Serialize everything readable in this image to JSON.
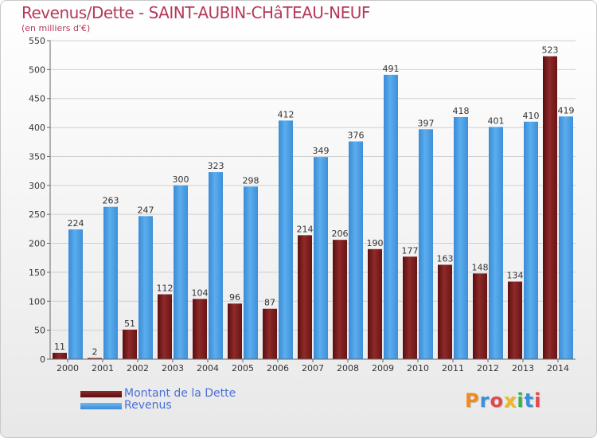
{
  "title": "Revenus/Dette - SAINT-AUBIN-CHâTEAU-NEUF",
  "subtitle": "(en milliers d'€)",
  "logo": "Proxiti",
  "chart_data": {
    "type": "bar",
    "categories": [
      "2000",
      "2001",
      "2002",
      "2003",
      "2004",
      "2005",
      "2006",
      "2007",
      "2008",
      "2009",
      "2010",
      "2011",
      "2012",
      "2013",
      "2014"
    ],
    "ylim": [
      0,
      550
    ],
    "yticks": [
      0,
      50,
      100,
      150,
      200,
      250,
      300,
      350,
      400,
      450,
      500,
      550
    ],
    "grid": true,
    "legend_position": "bottom-left",
    "series": [
      {
        "name": "Montant de la Dette",
        "color": "#7a1e1e",
        "values": [
          11,
          2,
          51,
          112,
          104,
          96,
          87,
          214,
          206,
          190,
          177,
          163,
          148,
          134,
          523
        ]
      },
      {
        "name": "Revenus",
        "color": "#4a9be0",
        "values": [
          224,
          263,
          247,
          300,
          323,
          298,
          412,
          349,
          376,
          491,
          397,
          418,
          401,
          410,
          419
        ]
      }
    ]
  }
}
